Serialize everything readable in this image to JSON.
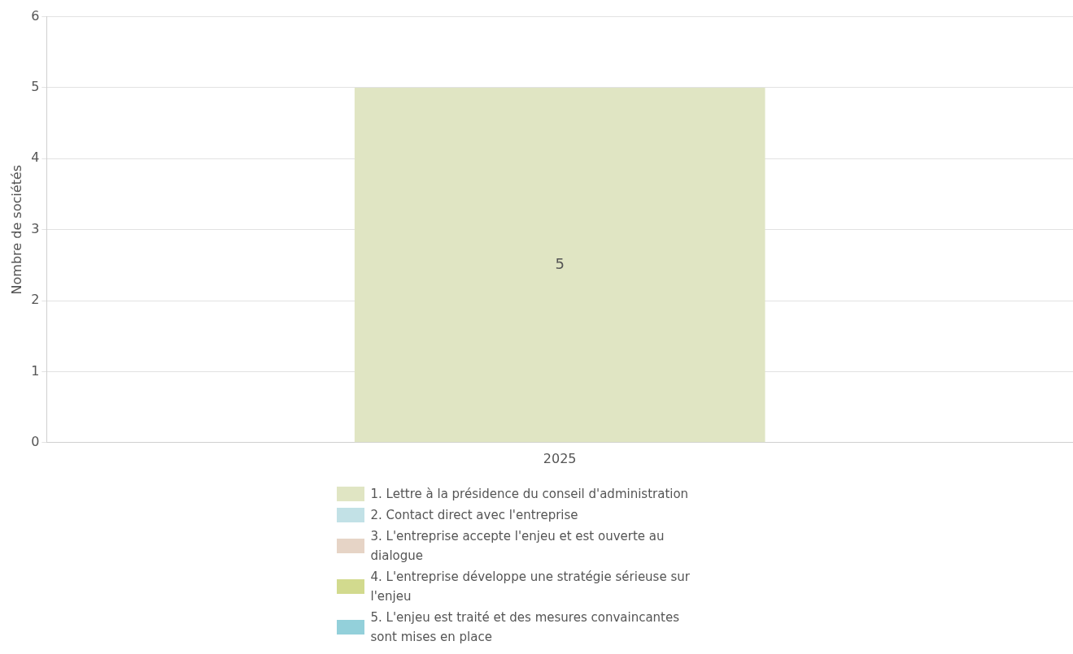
{
  "chart_data": {
    "type": "bar",
    "stacked": true,
    "ylabel": "Nombre de sociétés",
    "categories": [
      "2025"
    ],
    "series": [
      {
        "name": "1. Lettre à la présidence du conseil d'administration",
        "color": "#e0e5c3",
        "values": [
          5
        ],
        "value_labels": [
          "5"
        ]
      },
      {
        "name": "2. Contact direct avec l'entreprise",
        "color": "#c2e1e6",
        "values": [
          null
        ]
      },
      {
        "name": "3. L'entreprise accepte l'enjeu et est ouverte au dialogue",
        "color": "#e6d4c6",
        "values": [
          null
        ]
      },
      {
        "name": "4. L'entreprise développe une stratégie sérieuse sur l'enjeu",
        "color": "#d2da8e",
        "values": [
          null
        ]
      },
      {
        "name": "5. L'enjeu est traité et des mesures convaincantes sont mises en place",
        "color": "#93d0da",
        "values": [
          null
        ]
      }
    ],
    "ylim": [
      0,
      6
    ],
    "yticks": [
      0,
      1,
      2,
      3,
      4,
      5,
      6
    ],
    "grid": "y",
    "legend": "bottom"
  }
}
